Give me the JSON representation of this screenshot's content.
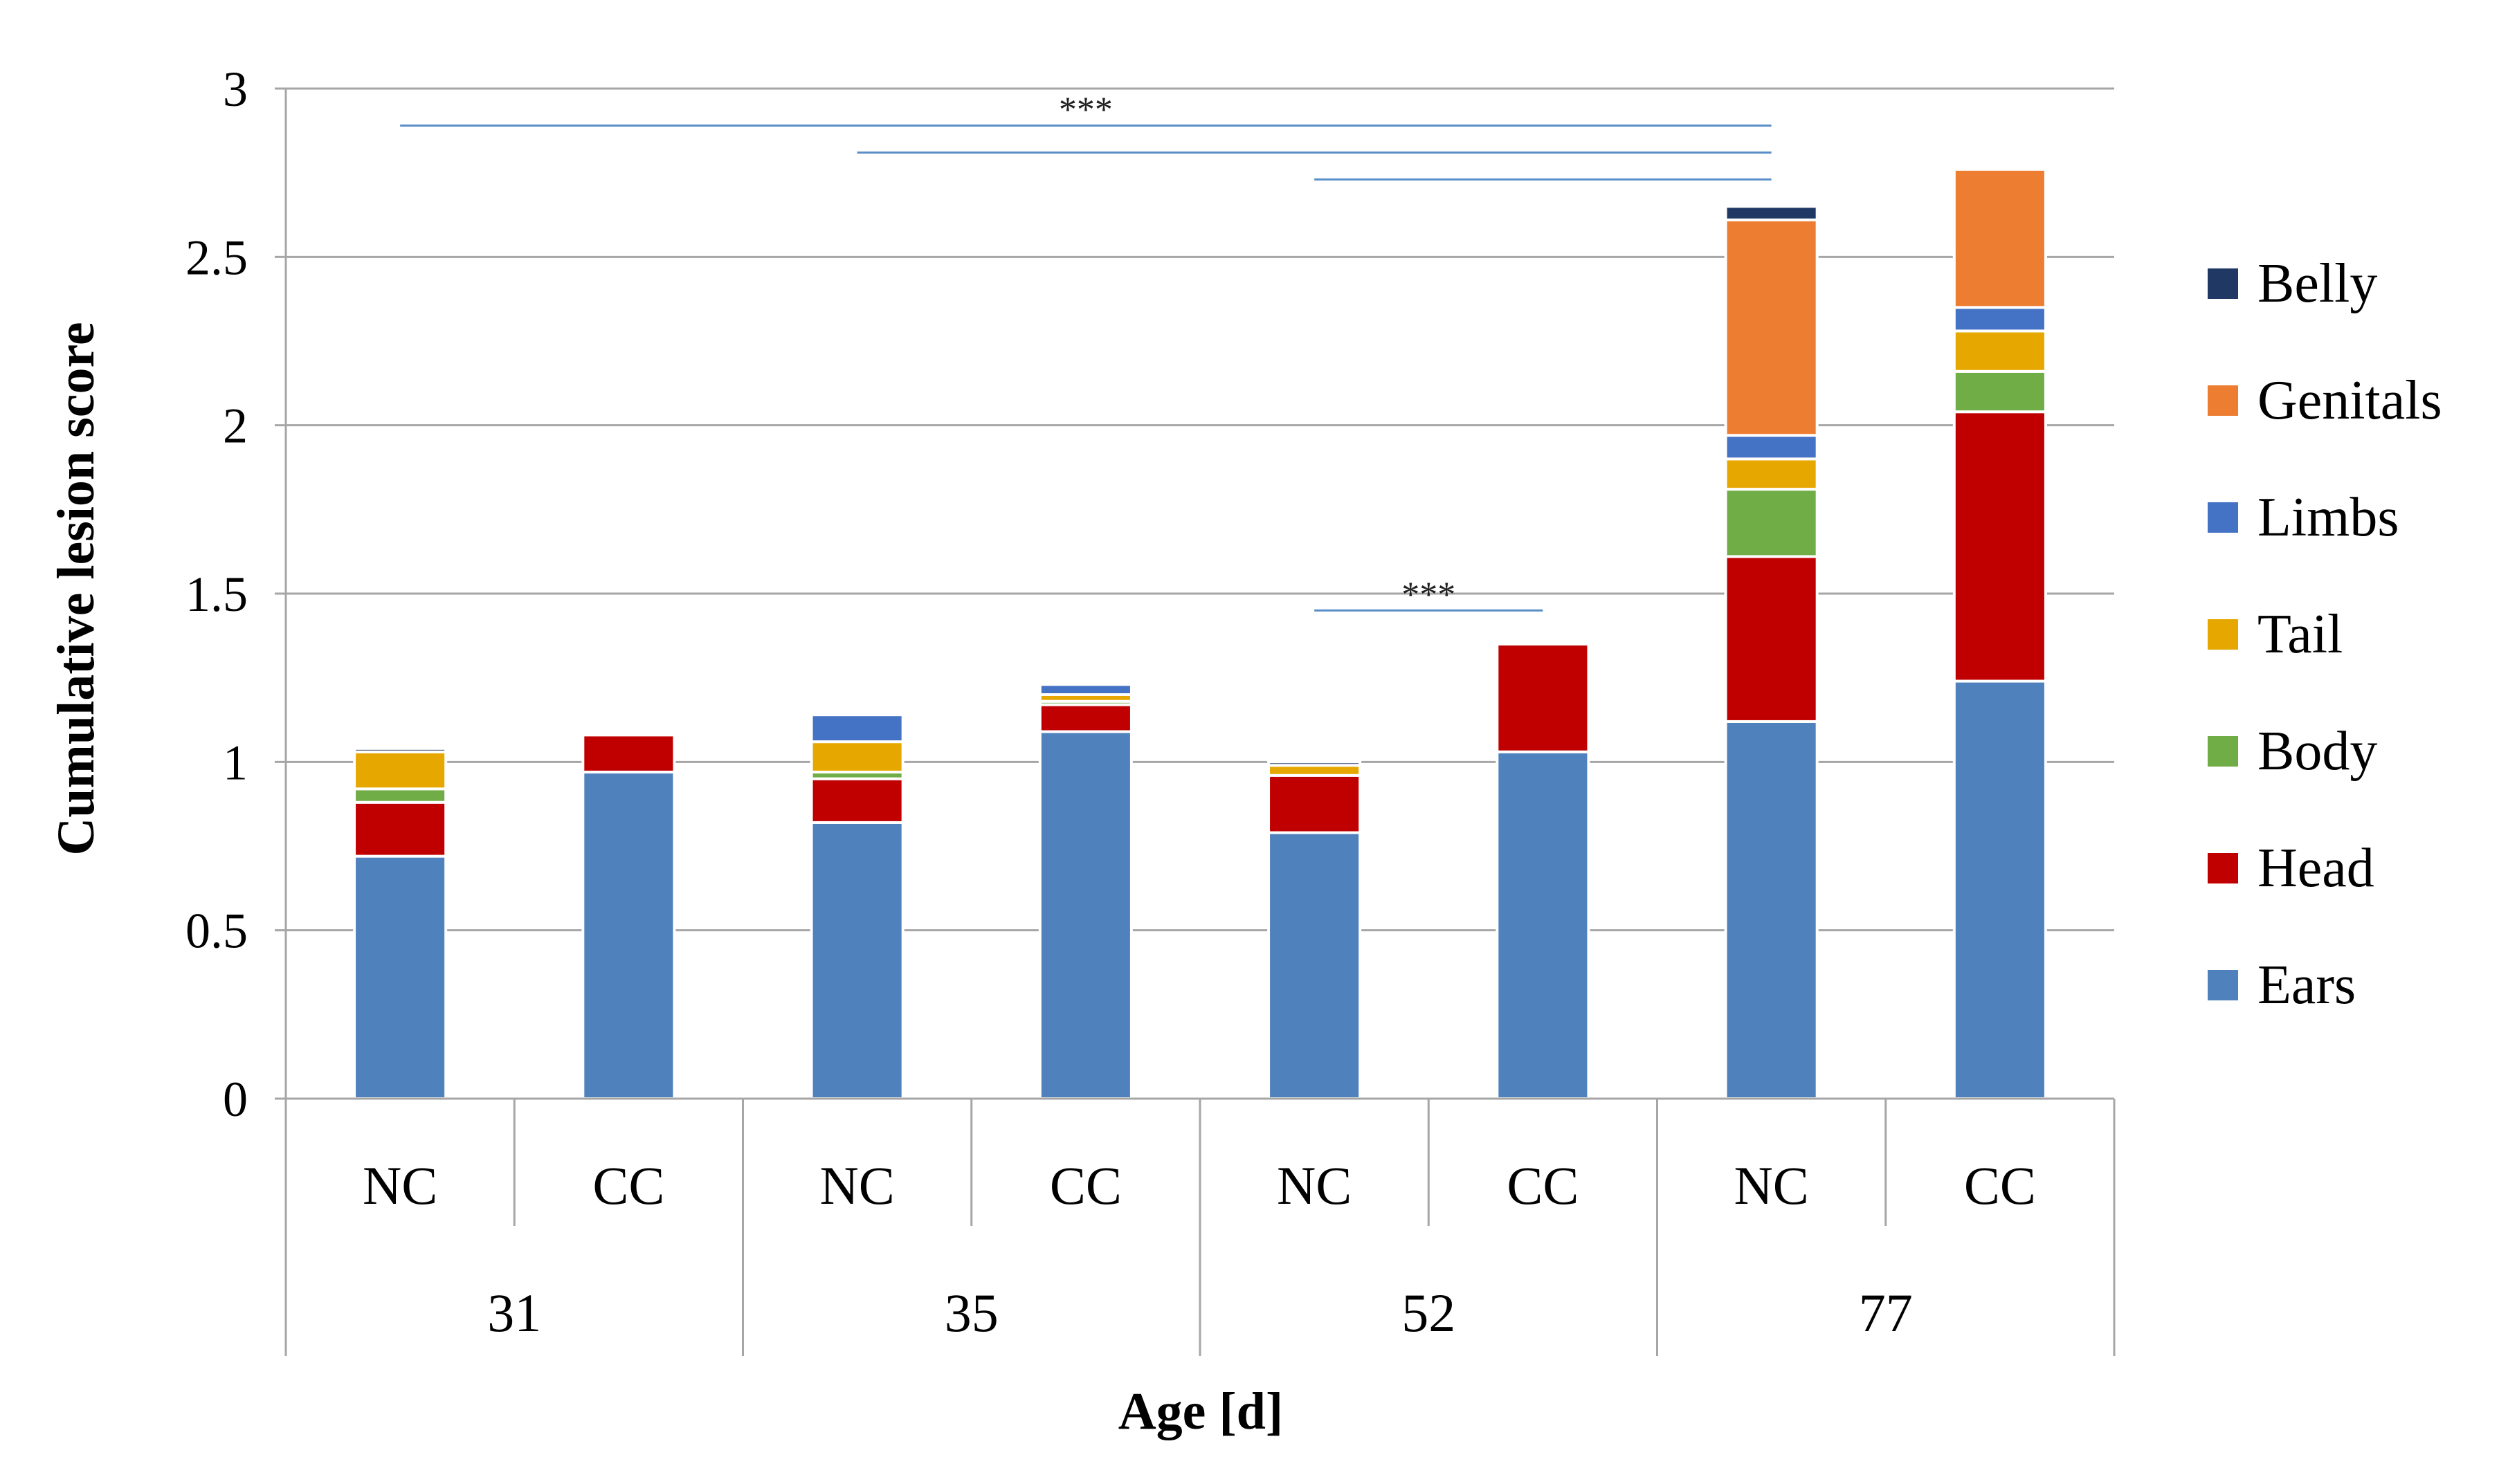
{
  "chart_data": {
    "type": "bar",
    "stacked": true,
    "ylabel": "Cumulative lesion score",
    "xlabel": "Age [d]",
    "ylim": [
      0,
      3
    ],
    "yticks": [
      0,
      0.5,
      1,
      1.5,
      2,
      2.5,
      3
    ],
    "ytick_labels": [
      "0",
      "0.5",
      "1",
      "1.5",
      "2",
      "2.5",
      "3"
    ],
    "grid": true,
    "groups": [
      "31",
      "35",
      "52",
      "77"
    ],
    "categories": [
      "NC",
      "CC",
      "NC",
      "CC",
      "NC",
      "CC",
      "NC",
      "CC"
    ],
    "legend_position": "right",
    "series": [
      {
        "name": "Ears",
        "color": "#4F81BD",
        "values": [
          0.72,
          0.97,
          0.82,
          1.09,
          0.79,
          1.03,
          1.12,
          1.24
        ]
      },
      {
        "name": "Head",
        "color": "#C00000",
        "values": [
          0.16,
          0.11,
          0.13,
          0.08,
          0.17,
          0.32,
          0.49,
          0.8
        ]
      },
      {
        "name": "Body",
        "color": "#70AD47",
        "values": [
          0.04,
          0.0,
          0.02,
          0.01,
          0.0,
          0.0,
          0.2,
          0.12
        ]
      },
      {
        "name": "Tail",
        "color": "#E6A800",
        "values": [
          0.11,
          0.0,
          0.09,
          0.02,
          0.03,
          0.0,
          0.09,
          0.12
        ]
      },
      {
        "name": "Limbs",
        "color": "#4472C4",
        "values": [
          0.0,
          0.0,
          0.08,
          0.03,
          0.0,
          0.0,
          0.07,
          0.07
        ]
      },
      {
        "name": "Genitals",
        "color": "#ED7D31",
        "values": [
          0.0,
          0.0,
          0.0,
          0.0,
          0.0,
          0.0,
          0.64,
          0.41
        ]
      },
      {
        "name": "Belly",
        "color": "#1F3864",
        "values": [
          0.01,
          0.0,
          0.0,
          0.0,
          0.01,
          0.0,
          0.04,
          0.0
        ]
      }
    ],
    "significance": [
      {
        "label": "***",
        "from_bar": 0,
        "to_bar": 6,
        "level": 2.89,
        "show_label": true
      },
      {
        "label": "***",
        "from_bar": 2,
        "to_bar": 6,
        "level": 2.81,
        "show_label": false
      },
      {
        "label": "***",
        "from_bar": 4,
        "to_bar": 6,
        "level": 2.73,
        "show_label": false
      },
      {
        "label": "***",
        "from_bar": 4,
        "to_bar": 5,
        "level": 1.45,
        "show_label": true
      }
    ]
  }
}
